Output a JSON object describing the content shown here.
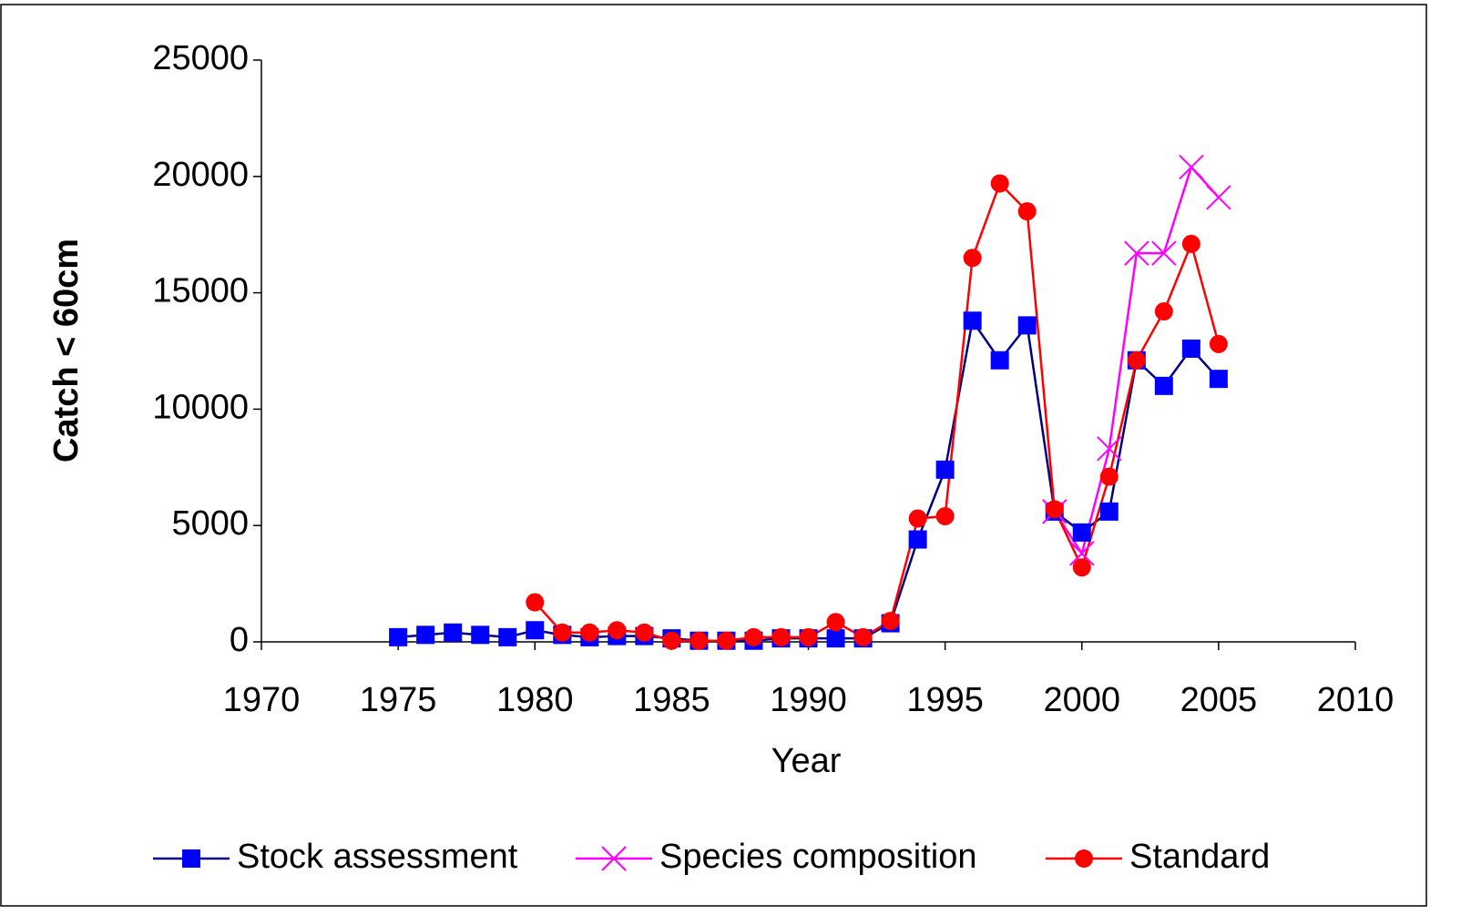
{
  "chart_data": {
    "type": "line",
    "y_label": "Catch < 60cm",
    "x_label": "Year",
    "x": [
      1975,
      1976,
      1977,
      1978,
      1979,
      1980,
      1981,
      1982,
      1983,
      1984,
      1985,
      1986,
      1987,
      1988,
      1989,
      1990,
      1991,
      1992,
      1993,
      1994,
      1995,
      1996,
      1997,
      1998,
      1999,
      2000,
      2001,
      2002,
      2003,
      2004,
      2005
    ],
    "series": [
      {
        "name": "Stock assessment",
        "color": "#0000ff",
        "line_color": "#000080",
        "marker": "square",
        "values": [
          200,
          300,
          400,
          300,
          200,
          500,
          300,
          200,
          250,
          250,
          150,
          50,
          50,
          50,
          150,
          150,
          150,
          150,
          800,
          4400,
          7400,
          13800,
          12100,
          13600,
          5600,
          4700,
          5600,
          12100,
          11000,
          12600,
          11300
        ]
      },
      {
        "name": "Species composition",
        "color": "#ff00ff",
        "line_color": "#ff00ff",
        "marker": "x",
        "values": [
          null,
          null,
          null,
          null,
          null,
          null,
          null,
          null,
          null,
          null,
          null,
          null,
          null,
          null,
          null,
          null,
          null,
          null,
          null,
          null,
          null,
          null,
          null,
          null,
          5600,
          3800,
          8300,
          16700,
          16700,
          20400,
          19100
        ]
      },
      {
        "name": "Standard",
        "color": "#ff0000",
        "line_color": "#ff0000",
        "marker": "circle",
        "values": [
          null,
          null,
          null,
          null,
          null,
          1700,
          400,
          400,
          500,
          400,
          50,
          50,
          50,
          200,
          200,
          200,
          850,
          200,
          900,
          5300,
          5400,
          16500,
          19700,
          18500,
          5700,
          3200,
          7100,
          12100,
          14200,
          17100,
          12800
        ]
      }
    ],
    "xlim": [
      1970,
      2010
    ],
    "xticks": [
      1970,
      1975,
      1980,
      1985,
      1990,
      1995,
      2000,
      2005,
      2010
    ],
    "ylim": [
      0,
      25000
    ],
    "yticks": [
      0,
      5000,
      10000,
      15000,
      20000,
      25000
    ],
    "legend": "bottom"
  }
}
